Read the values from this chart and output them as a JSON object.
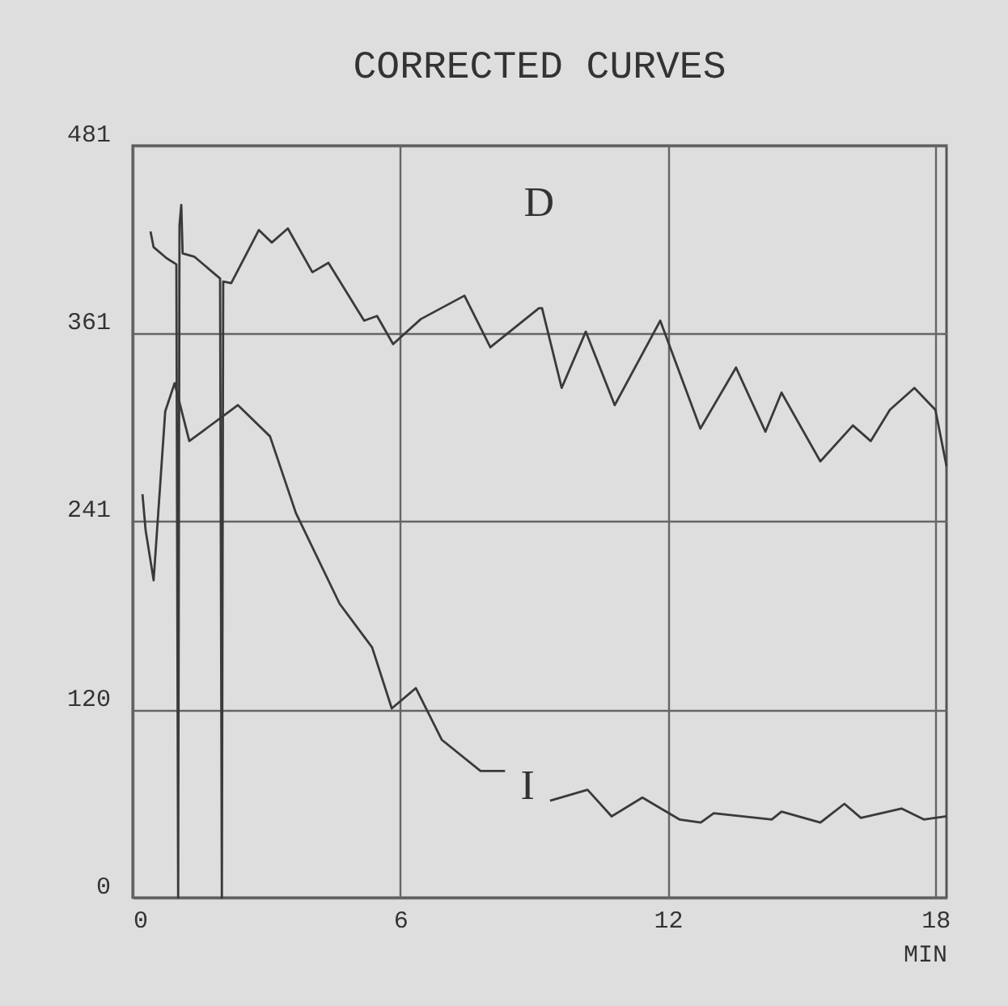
{
  "chart_data": {
    "type": "line",
    "title": "CORRECTED CURVES",
    "xlabel": "MIN",
    "xlim": [
      0,
      18.25
    ],
    "xticks": [
      0,
      6,
      12,
      18
    ],
    "ylim": [
      0,
      481
    ],
    "yticks": [
      0,
      120,
      241,
      361,
      481
    ],
    "grid": true,
    "legend": false,
    "marker": "none",
    "line_style": "solid",
    "series": [
      {
        "name": "D",
        "color": "#3a3a3a",
        "x": [
          0.4,
          0.47,
          0.76,
          0.98,
          1.02,
          1.05,
          1.09,
          1.12,
          1.38,
          1.96,
          2.0,
          2.03,
          2.21,
          2.83,
          3.12,
          3.48,
          4.03,
          4.39,
          5.19,
          5.48,
          5.84,
          6.46,
          7.44,
          8.02,
          9.11,
          9.18,
          9.62,
          10.16,
          10.81,
          11.83,
          12.73,
          13.53,
          14.19,
          14.55,
          15.42,
          16.15,
          16.55,
          16.98,
          17.53,
          18.0,
          18.25
        ],
        "values": [
          426,
          416,
          409,
          405,
          0,
          430,
          443,
          412,
          410,
          396,
          0,
          394,
          393,
          427,
          419,
          428,
          400,
          406,
          369,
          372,
          354,
          370,
          385,
          352,
          377,
          377,
          326,
          362,
          315,
          369,
          300,
          339,
          298,
          323,
          279,
          302,
          292,
          312,
          326,
          312,
          276
        ]
      },
      {
        "name": "I",
        "color": "#3a3a3a",
        "x": [
          0.22,
          0.29,
          0.47,
          0.73,
          0.94,
          1.27,
          2.36,
          3.08,
          3.66,
          4.64,
          5.37,
          5.81,
          6.35,
          6.93,
          7.8,
          8.35,
          8.82,
          9.36,
          10.2,
          10.74,
          11.43,
          12.26,
          12.74,
          13.03,
          14.33,
          14.55,
          15.42,
          15.96,
          16.33,
          17.24,
          17.74,
          18.25
        ],
        "values": [
          258,
          235,
          203,
          311,
          329,
          292,
          315,
          295,
          246,
          188,
          160,
          121,
          134,
          101,
          81,
          81,
          null,
          62,
          69,
          52,
          64,
          50,
          48,
          54,
          50,
          55,
          48,
          60,
          51,
          57,
          50,
          52
        ]
      }
    ]
  }
}
